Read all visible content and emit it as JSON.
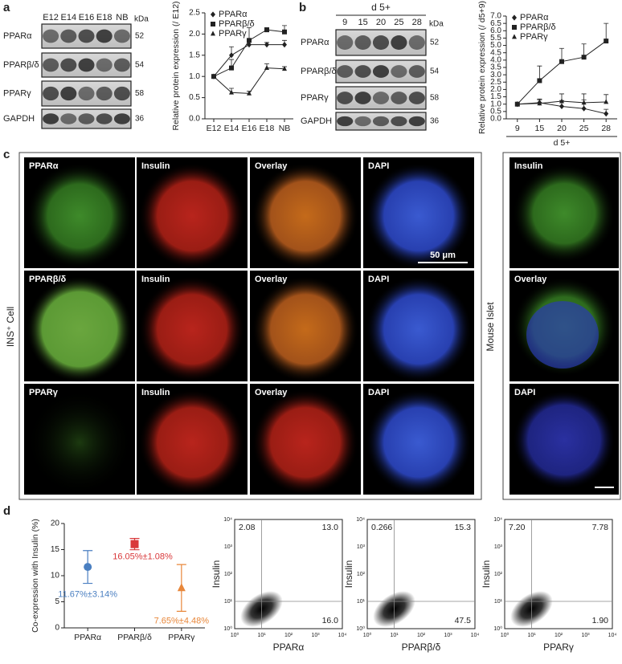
{
  "panel_labels": [
    "a",
    "b",
    "c",
    "d"
  ],
  "blot_a": {
    "lanes": [
      "E12",
      "E14",
      "E16",
      "E18",
      "NB"
    ],
    "unit": "kDa",
    "rows": [
      {
        "name": "PPARα",
        "kda": "52"
      },
      {
        "name": "PPARβ/δ",
        "kda": "54"
      },
      {
        "name": "PPARγ",
        "kda": "58"
      },
      {
        "name": "GAPDH",
        "kda": "36"
      }
    ]
  },
  "blot_b": {
    "header": "d 5+",
    "lanes": [
      "9",
      "15",
      "20",
      "25",
      "28"
    ],
    "unit": "kDa",
    "rows": [
      {
        "name": "PPARα",
        "kda": "52"
      },
      {
        "name": "PPARβ/δ",
        "kda": "54"
      },
      {
        "name": "PPARγ",
        "kda": "58"
      },
      {
        "name": "GAPDH",
        "kda": "36"
      }
    ]
  },
  "imaging": {
    "group_label": "INS⁺ Cell",
    "rows": [
      [
        "PPARα",
        "Insulin",
        "Overlay",
        "DAPI"
      ],
      [
        "PPARβ/δ",
        "Insulin",
        "Overlay",
        "DAPI"
      ],
      [
        "PPARγ",
        "Insulin",
        "Overlay",
        "DAPI"
      ]
    ],
    "scale_bar": "50 μm",
    "islet_label": "Mouse Islet",
    "islet_panels": [
      "Insulin",
      "Overlay",
      "DAPI"
    ]
  },
  "flow": {
    "y_label": "Insulin",
    "ticks": [
      "10⁰",
      "10¹",
      "10²",
      "10³",
      "10⁴"
    ],
    "plots": [
      {
        "x_label": "PPARα",
        "quadrants": [
          "2.08",
          "13.0",
          "16.0"
        ]
      },
      {
        "x_label": "PPARβ/δ",
        "quadrants": [
          "0.266",
          "15.3",
          "47.5"
        ]
      },
      {
        "x_label": "PPARγ",
        "quadrants": [
          "7.20",
          "7.78",
          "1.90"
        ]
      }
    ]
  },
  "chart_data": [
    {
      "type": "line",
      "y_label": "Relative protein expression (/ E12)",
      "categories": [
        "E12",
        "E14",
        "E16",
        "E18",
        "NB"
      ],
      "ylim": [
        0,
        2.5
      ],
      "yticks": [
        {
          "value": 0,
          "label": "0.0"
        },
        0.5,
        {
          "value": 1,
          "label": "1.0"
        },
        1.5,
        {
          "value": 2,
          "label": "2.0"
        },
        2.5
      ],
      "series": [
        {
          "name": "PPARα",
          "color": "#222222",
          "marker": "diamond",
          "values": [
            1,
            1.5,
            1.75,
            1.75,
            1.75
          ],
          "errors": [
            0,
            0.2,
            0.1,
            0.05,
            0.1
          ]
        },
        {
          "name": "PPARβ/δ",
          "color": "#222222",
          "marker": "square",
          "values": [
            1,
            1.2,
            1.85,
            2.1,
            2.05
          ],
          "errors": [
            0,
            0.2,
            0.3,
            0.05,
            0.15
          ]
        },
        {
          "name": "PPARγ",
          "color": "#222222",
          "marker": "triangle",
          "values": [
            1,
            0.62,
            0.6,
            1.2,
            1.18
          ],
          "errors": [
            0,
            0.1,
            0.05,
            0.1,
            0.05
          ]
        }
      ]
    },
    {
      "type": "line",
      "y_label": "Relative protein expression (/ d5+9)",
      "x_label": "d 5+",
      "categories": [
        "9",
        "15",
        "20",
        "25",
        "28"
      ],
      "ylim": [
        0,
        7
      ],
      "yticks": [
        {
          "value": 0,
          "label": "0.0"
        },
        0.5,
        {
          "value": 1,
          "label": "1.0"
        },
        1.5,
        {
          "value": 2,
          "label": "2.0"
        },
        2.5,
        {
          "value": 3,
          "label": "3.0"
        },
        3.5,
        {
          "value": 4,
          "label": "4.0"
        },
        4.5,
        {
          "value": 5,
          "label": "5.0"
        },
        5.5,
        {
          "value": 6,
          "label": "6.0"
        },
        6.5,
        {
          "value": 7,
          "label": "7.0"
        }
      ],
      "series": [
        {
          "name": "PPARα",
          "color": "#222222",
          "marker": "diamond",
          "values": [
            1,
            1.1,
            0.85,
            0.7,
            0.35
          ],
          "errors": [
            0,
            0.2,
            0.4,
            0.6,
            0.3
          ]
        },
        {
          "name": "PPARβ/δ",
          "color": "#222222",
          "marker": "square",
          "values": [
            1,
            2.6,
            3.9,
            4.2,
            5.3
          ],
          "errors": [
            0,
            1,
            0.9,
            0.9,
            1.2
          ]
        },
        {
          "name": "PPARγ",
          "color": "#222222",
          "marker": "triangle",
          "values": [
            1,
            1.05,
            1.2,
            1.1,
            1.15
          ],
          "errors": [
            0,
            0.3,
            0.5,
            0.6,
            0.5
          ]
        }
      ]
    },
    {
      "type": "errorbar",
      "y_label": "Co-expression with Insulin (%)",
      "categories": [
        "PPARα",
        "PPARβ/δ",
        "PPARγ"
      ],
      "ylim": [
        0,
        20
      ],
      "yticks": [
        0,
        5,
        10,
        15,
        20
      ],
      "values": [
        11.67,
        16.05,
        7.65
      ],
      "errors": [
        3.14,
        1.08,
        4.48
      ],
      "value_labels": [
        "11.67%±3.14%",
        "16.05%±1.08%",
        "7.65%±4.48%"
      ],
      "colors": [
        "#4a7fc1",
        "#d9393b",
        "#e8873a"
      ],
      "markers": [
        "circle",
        "square",
        "triangle"
      ]
    }
  ]
}
